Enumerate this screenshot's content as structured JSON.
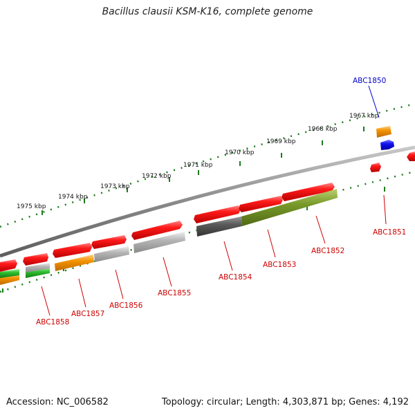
{
  "title": "Bacillus clausii KSM-K16, complete genome",
  "footer": {
    "accession": "Accession: NC_006582",
    "topology": "Topology: circular; Length: 4,303,871 bp; Genes: 4,192"
  },
  "scale": {
    "labels": [
      "1975 kbp",
      "1974 kbp",
      "1973 kbp",
      "1972 kbp",
      "1971 kbp",
      "1970 kbp",
      "1969 kbp",
      "1968 kbp",
      "1967 kbp"
    ]
  },
  "genes": [
    {
      "label": "ABC1850",
      "color": "#0000cc"
    },
    {
      "label": "ABC1851",
      "color": "#cc0000"
    },
    {
      "label": "ABC1852",
      "color": "#cc0000"
    },
    {
      "label": "ABC1853",
      "color": "#cc0000"
    },
    {
      "label": "ABC1854",
      "color": "#cc0000"
    },
    {
      "label": "ABC1855",
      "color": "#cc0000"
    },
    {
      "label": "ABC1856",
      "color": "#cc0000"
    },
    {
      "label": "ABC1857",
      "color": "#cc0000"
    },
    {
      "label": "ABC1858",
      "color": "#cc0000"
    }
  ],
  "colors": {
    "backbone": "#808080",
    "tick": "#1a7a1a",
    "cds_forward": "#ee1111",
    "cds_reverse": "#0000ee",
    "feature_orange": "#f08c00",
    "feature_gray": "#aaaaaa",
    "feature_darkgray": "#555555",
    "feature_olive": "#6b8e23",
    "feature_green": "#22aa22"
  }
}
